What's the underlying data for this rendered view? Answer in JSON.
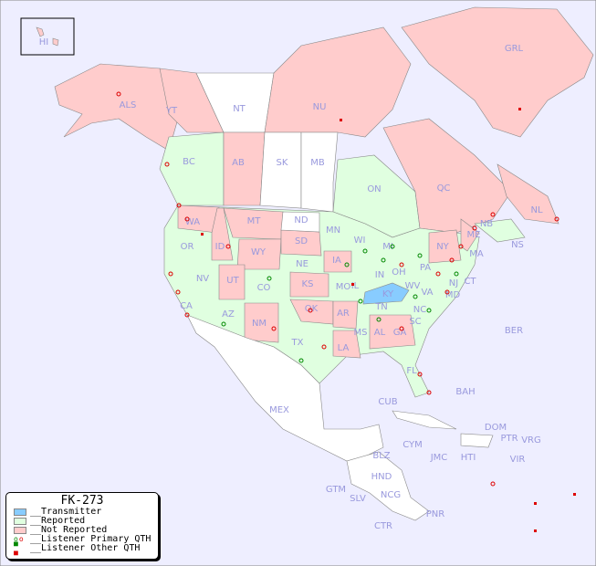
{
  "map": {
    "colors": {
      "ocean": "#eeeeff",
      "transmitter": "#88ccff",
      "reported": "#e0ffe0",
      "not_reported": "#ffcccc",
      "unlisted": "#ffffff",
      "primary_dot": "#008800",
      "other_dot": "#dd0000"
    },
    "labels": [
      "HI",
      "ALS",
      "YT",
      "NT",
      "NU",
      "GRL",
      "BC",
      "AB",
      "SK",
      "MB",
      "ON",
      "QC",
      "NL",
      "NB",
      "NS",
      "ME",
      "WA",
      "OR",
      "ID",
      "MT",
      "WY",
      "ND",
      "SD",
      "MN",
      "WI",
      "MI",
      "NE",
      "IA",
      "IL",
      "IN",
      "OH",
      "PA",
      "NY",
      "MA",
      "CT",
      "NJ",
      "MD",
      "NV",
      "UT",
      "CO",
      "KS",
      "MO",
      "KY",
      "WV",
      "VA",
      "CA",
      "AZ",
      "NM",
      "OK",
      "AR",
      "TN",
      "NC",
      "SC",
      "MS",
      "AL",
      "GA",
      "LA",
      "TX",
      "FL",
      "MEX",
      "CUB",
      "BAH",
      "BER",
      "DOM",
      "PTR",
      "VRG",
      "CYM",
      "JMC",
      "HTI",
      "VIR",
      "BLZ",
      "GTM",
      "HND",
      "SLV",
      "NCG",
      "CTR",
      "PNR"
    ]
  },
  "legend": {
    "title": "FK-273",
    "items": [
      "__Transmitter",
      "__Reported",
      "__Not Reported",
      "__Listener Primary QTH",
      "__Listener Other QTH"
    ]
  }
}
